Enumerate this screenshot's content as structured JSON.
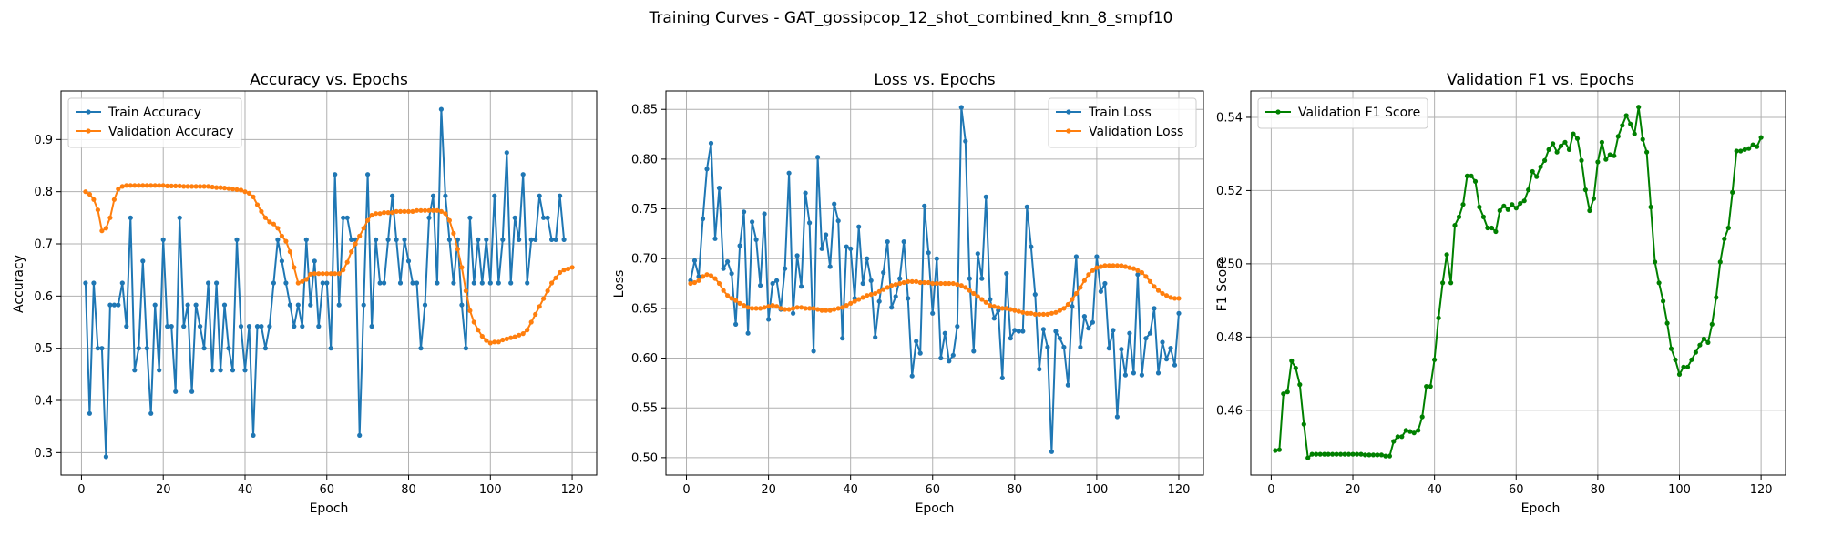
{
  "suptitle": "Training Curves - GAT_gossipcop_12_shot_combined_knn_8_smpf10",
  "colors": {
    "train": "#1f77b4",
    "validation": "#ff7f0e",
    "f1": "#008000"
  },
  "chart_data": [
    {
      "type": "line",
      "title": "Accuracy vs. Epochs",
      "xlabel": "Epoch",
      "ylabel": "Accuracy",
      "xlim": [
        -5,
        126
      ],
      "ylim": [
        0.257,
        0.993
      ],
      "xticks": [
        0,
        20,
        40,
        60,
        80,
        100,
        120
      ],
      "yticks": [
        0.3,
        0.4,
        0.5,
        0.6,
        0.7,
        0.8,
        0.9
      ],
      "grid": true,
      "legend_position": "top-left",
      "series": [
        {
          "name": "Train Accuracy",
          "color": "#1f77b4",
          "x_start": 1,
          "values": [
            0.625,
            0.375,
            0.625,
            0.5,
            0.5,
            0.292,
            0.583,
            0.583,
            0.583,
            0.625,
            0.542,
            0.75,
            0.458,
            0.5,
            0.667,
            0.5,
            0.375,
            0.583,
            0.458,
            0.708,
            0.542,
            0.542,
            0.417,
            0.75,
            0.542,
            0.583,
            0.417,
            0.583,
            0.542,
            0.5,
            0.625,
            0.458,
            0.625,
            0.458,
            0.583,
            0.5,
            0.458,
            0.708,
            0.542,
            0.458,
            0.542,
            0.333,
            0.542,
            0.542,
            0.5,
            0.542,
            0.625,
            0.708,
            0.667,
            0.625,
            0.583,
            0.542,
            0.583,
            0.542,
            0.708,
            0.583,
            0.667,
            0.542,
            0.625,
            0.625,
            0.5,
            0.833,
            0.583,
            0.75,
            0.75,
            0.708,
            0.708,
            0.333,
            0.583,
            0.833,
            0.542,
            0.708,
            0.625,
            0.625,
            0.708,
            0.792,
            0.708,
            0.625,
            0.708,
            0.667,
            0.625,
            0.625,
            0.5,
            0.583,
            0.75,
            0.792,
            0.625,
            0.958,
            0.792,
            0.708,
            0.625,
            0.708,
            0.583,
            0.5,
            0.75,
            0.625,
            0.708,
            0.625,
            0.708,
            0.625,
            0.792,
            0.625,
            0.708,
            0.875,
            0.625,
            0.75,
            0.708,
            0.833,
            0.625,
            0.708,
            0.708,
            0.792,
            0.75,
            0.75,
            0.708,
            0.708,
            0.792,
            0.708
          ]
        },
        {
          "name": "Validation Accuracy",
          "color": "#ff7f0e",
          "x_start": 1,
          "values": [
            0.8,
            0.795,
            0.785,
            0.765,
            0.725,
            0.73,
            0.75,
            0.785,
            0.805,
            0.81,
            0.812,
            0.812,
            0.812,
            0.812,
            0.812,
            0.812,
            0.812,
            0.812,
            0.812,
            0.812,
            0.811,
            0.811,
            0.811,
            0.811,
            0.81,
            0.81,
            0.81,
            0.81,
            0.81,
            0.81,
            0.81,
            0.809,
            0.808,
            0.808,
            0.807,
            0.806,
            0.805,
            0.804,
            0.803,
            0.8,
            0.797,
            0.79,
            0.775,
            0.762,
            0.75,
            0.742,
            0.738,
            0.73,
            0.715,
            0.705,
            0.685,
            0.655,
            0.625,
            0.628,
            0.632,
            0.642,
            0.643,
            0.643,
            0.643,
            0.643,
            0.643,
            0.643,
            0.643,
            0.65,
            0.665,
            0.685,
            0.7,
            0.715,
            0.73,
            0.745,
            0.755,
            0.758,
            0.758,
            0.76,
            0.76,
            0.76,
            0.762,
            0.762,
            0.762,
            0.762,
            0.762,
            0.764,
            0.764,
            0.764,
            0.764,
            0.764,
            0.764,
            0.762,
            0.758,
            0.745,
            0.72,
            0.69,
            0.655,
            0.61,
            0.572,
            0.55,
            0.535,
            0.523,
            0.515,
            0.51,
            0.512,
            0.512,
            0.516,
            0.518,
            0.52,
            0.522,
            0.525,
            0.528,
            0.535,
            0.55,
            0.565,
            0.58,
            0.595,
            0.61,
            0.625,
            0.635,
            0.645,
            0.65,
            0.652,
            0.655
          ]
        }
      ]
    },
    {
      "type": "line",
      "title": "Loss vs. Epochs",
      "xlabel": "Epoch",
      "ylabel": "Loss",
      "xlim": [
        -5,
        126
      ],
      "ylim": [
        0.4825,
        0.8685
      ],
      "xticks": [
        0,
        20,
        40,
        60,
        80,
        100,
        120
      ],
      "yticks": [
        0.5,
        0.55,
        0.6,
        0.65,
        0.7,
        0.75,
        0.8,
        0.85
      ],
      "ytick_decimals": 2,
      "grid": true,
      "legend_position": "top-right",
      "series": [
        {
          "name": "Train Loss",
          "color": "#1f77b4",
          "x_start": 1,
          "values": [
            0.678,
            0.698,
            0.682,
            0.74,
            0.79,
            0.816,
            0.72,
            0.771,
            0.69,
            0.697,
            0.685,
            0.634,
            0.713,
            0.747,
            0.625,
            0.737,
            0.719,
            0.673,
            0.745,
            0.639,
            0.675,
            0.678,
            0.649,
            0.69,
            0.786,
            0.645,
            0.703,
            0.672,
            0.766,
            0.736,
            0.607,
            0.802,
            0.71,
            0.724,
            0.692,
            0.755,
            0.738,
            0.62,
            0.712,
            0.71,
            0.66,
            0.732,
            0.675,
            0.7,
            0.678,
            0.621,
            0.657,
            0.686,
            0.717,
            0.651,
            0.662,
            0.68,
            0.717,
            0.66,
            0.582,
            0.617,
            0.605,
            0.753,
            0.706,
            0.645,
            0.7,
            0.6,
            0.625,
            0.597,
            0.603,
            0.632,
            0.852,
            0.818,
            0.68,
            0.607,
            0.705,
            0.68,
            0.762,
            0.659,
            0.64,
            0.648,
            0.58,
            0.685,
            0.62,
            0.628,
            0.627,
            0.627,
            0.752,
            0.712,
            0.664,
            0.589,
            0.629,
            0.611,
            0.506,
            0.627,
            0.62,
            0.611,
            0.573,
            0.652,
            0.702,
            0.611,
            0.642,
            0.63,
            0.636,
            0.702,
            0.667,
            0.675,
            0.61,
            0.628,
            0.541,
            0.609,
            0.583,
            0.625,
            0.585,
            0.684,
            0.583,
            0.62,
            0.625,
            0.65,
            0.585,
            0.616,
            0.599,
            0.61,
            0.593,
            0.645
          ]
        },
        {
          "name": "Validation Loss",
          "color": "#ff7f0e",
          "x_start": 1,
          "values": [
            0.675,
            0.676,
            0.678,
            0.682,
            0.684,
            0.683,
            0.68,
            0.675,
            0.668,
            0.663,
            0.66,
            0.658,
            0.655,
            0.653,
            0.651,
            0.65,
            0.65,
            0.65,
            0.651,
            0.652,
            0.653,
            0.652,
            0.65,
            0.649,
            0.649,
            0.65,
            0.651,
            0.651,
            0.65,
            0.65,
            0.65,
            0.649,
            0.648,
            0.648,
            0.648,
            0.649,
            0.65,
            0.651,
            0.653,
            0.655,
            0.657,
            0.659,
            0.661,
            0.663,
            0.664,
            0.665,
            0.667,
            0.669,
            0.671,
            0.673,
            0.674,
            0.675,
            0.676,
            0.677,
            0.677,
            0.677,
            0.676,
            0.676,
            0.676,
            0.675,
            0.675,
            0.675,
            0.675,
            0.675,
            0.675,
            0.674,
            0.673,
            0.671,
            0.668,
            0.665,
            0.662,
            0.659,
            0.656,
            0.653,
            0.652,
            0.651,
            0.65,
            0.65,
            0.649,
            0.648,
            0.647,
            0.646,
            0.645,
            0.645,
            0.644,
            0.644,
            0.644,
            0.644,
            0.645,
            0.646,
            0.648,
            0.65,
            0.654,
            0.659,
            0.665,
            0.671,
            0.678,
            0.684,
            0.688,
            0.691,
            0.692,
            0.693,
            0.693,
            0.693,
            0.693,
            0.693,
            0.692,
            0.691,
            0.69,
            0.688,
            0.686,
            0.682,
            0.677,
            0.672,
            0.668,
            0.665,
            0.663,
            0.661,
            0.66,
            0.66
          ]
        }
      ]
    },
    {
      "type": "line",
      "title": "Validation F1 vs. Epochs",
      "xlabel": "Epoch",
      "ylabel": "F1 Score",
      "xlim": [
        -5,
        126
      ],
      "ylim": [
        0.4423,
        0.5472
      ],
      "xticks": [
        0,
        20,
        40,
        60,
        80,
        100,
        120
      ],
      "yticks": [
        0.46,
        0.48,
        0.5,
        0.52,
        0.54
      ],
      "ytick_decimals": 2,
      "grid": true,
      "legend_position": "top-left",
      "series": [
        {
          "name": "Validation F1 Score",
          "color": "#008000",
          "x_start": 1,
          "values": [
            0.449,
            0.4492,
            0.4645,
            0.465,
            0.4735,
            0.4715,
            0.467,
            0.4562,
            0.447,
            0.448,
            0.448,
            0.448,
            0.448,
            0.448,
            0.448,
            0.448,
            0.448,
            0.448,
            0.448,
            0.448,
            0.448,
            0.448,
            0.4478,
            0.4478,
            0.4478,
            0.4478,
            0.4478,
            0.4475,
            0.4475,
            0.4515,
            0.4528,
            0.4528,
            0.4545,
            0.4542,
            0.4538,
            0.4545,
            0.4582,
            0.4665,
            0.4665,
            0.4738,
            0.4852,
            0.4948,
            0.5025,
            0.4948,
            0.5105,
            0.5128,
            0.5162,
            0.524,
            0.524,
            0.5225,
            0.5155,
            0.5128,
            0.5098,
            0.5098,
            0.5088,
            0.5145,
            0.5158,
            0.5148,
            0.5162,
            0.5152,
            0.5165,
            0.5172,
            0.5202,
            0.5252,
            0.5238,
            0.5265,
            0.5282,
            0.5312,
            0.5328,
            0.5305,
            0.5322,
            0.5332,
            0.5312,
            0.5355,
            0.5342,
            0.5282,
            0.5202,
            0.5145,
            0.5178,
            0.5278,
            0.5332,
            0.5285,
            0.5298,
            0.5295,
            0.5348,
            0.5378,
            0.5405,
            0.5382,
            0.5355,
            0.5428,
            0.534,
            0.5305,
            0.5155,
            0.5005,
            0.4948,
            0.4898,
            0.4838,
            0.4768,
            0.4738,
            0.4698,
            0.4718,
            0.4718,
            0.4738,
            0.4758,
            0.4778,
            0.4795,
            0.4785,
            0.4835,
            0.4908,
            0.5005,
            0.5068,
            0.5098,
            0.5195,
            0.5308,
            0.5308,
            0.5312,
            0.5315,
            0.5325,
            0.532,
            0.5345
          ]
        }
      ]
    }
  ]
}
